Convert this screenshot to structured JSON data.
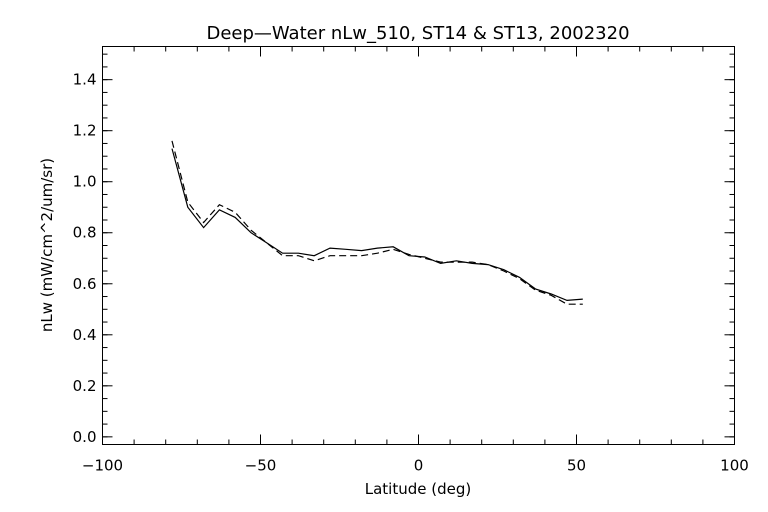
{
  "chart_data": {
    "type": "line",
    "title": "Deep—Water nLw_510, ST14 & ST13, 2002320",
    "xlabel": "Latitude (deg)",
    "ylabel": "nLw (mW/cm^2/um/sr)",
    "xlim": [
      -100,
      100
    ],
    "ylim": [
      -0.03,
      1.53
    ],
    "x_ticks": [
      -100,
      -50,
      0,
      50,
      100
    ],
    "x_tick_labels": [
      "−100",
      "−50",
      "0",
      "50",
      "100"
    ],
    "y_ticks": [
      0.0,
      0.2,
      0.4,
      0.6,
      0.8,
      1.0,
      1.2,
      1.4
    ],
    "y_tick_labels": [
      "0.0",
      "0.2",
      "0.4",
      "0.6",
      "0.8",
      "1.0",
      "1.2",
      "1.4"
    ],
    "x_minor_step": 10,
    "y_minor_step": 0.05,
    "grid": false,
    "series": [
      {
        "style": "solid",
        "color": "#000000",
        "x": [
          -78,
          -73,
          -68,
          -63,
          -58,
          -53,
          -48,
          -43,
          -38,
          -33,
          -28,
          -23,
          -18,
          -13,
          -8,
          -3,
          2,
          7,
          12,
          17,
          22,
          27,
          32,
          37,
          42,
          47,
          52
        ],
        "y": [
          1.13,
          0.9,
          0.82,
          0.89,
          0.86,
          0.8,
          0.76,
          0.72,
          0.72,
          0.71,
          0.74,
          0.735,
          0.73,
          0.74,
          0.745,
          0.71,
          0.705,
          0.68,
          0.69,
          0.68,
          0.675,
          0.655,
          0.625,
          0.58,
          0.56,
          0.535,
          0.54
        ]
      },
      {
        "style": "dashed",
        "color": "#000000",
        "x": [
          -78,
          -73,
          -68,
          -63,
          -58,
          -53,
          -48,
          -43,
          -38,
          -33,
          -28,
          -23,
          -18,
          -13,
          -8,
          -3,
          2,
          7,
          12,
          17,
          22,
          27,
          32,
          37,
          42,
          47,
          52
        ],
        "y": [
          1.16,
          0.92,
          0.84,
          0.91,
          0.88,
          0.81,
          0.76,
          0.71,
          0.71,
          0.69,
          0.71,
          0.71,
          0.71,
          0.72,
          0.735,
          0.715,
          0.7,
          0.685,
          0.685,
          0.685,
          0.675,
          0.65,
          0.62,
          0.575,
          0.555,
          0.52,
          0.52
        ]
      }
    ]
  }
}
